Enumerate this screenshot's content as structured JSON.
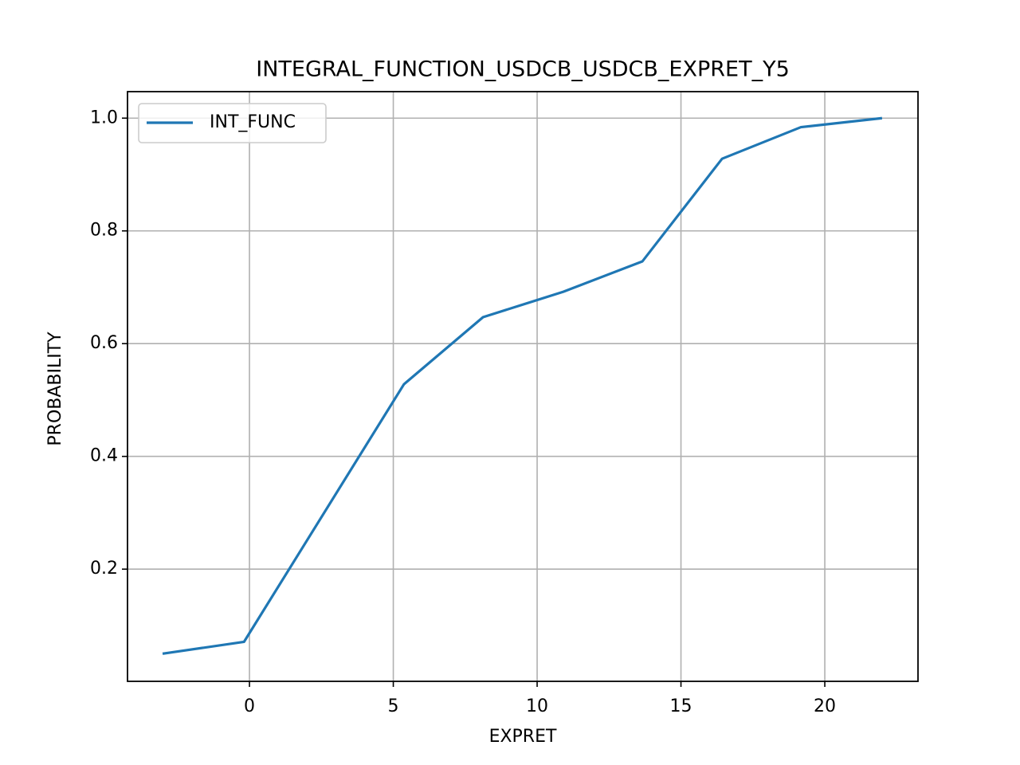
{
  "chart_data": {
    "type": "line",
    "title": "INTEGRAL_FUNCTION_USDCB_USDCB_EXPRET_Y5",
    "x_label": "EXPRET",
    "y_label": "PROBABILITY",
    "x": [
      -3.02,
      -0.19,
      5.37,
      8.12,
      10.91,
      13.66,
      16.43,
      19.17,
      21.99
    ],
    "series": [
      {
        "name": "INT_FUNC",
        "color": "#1f77b4",
        "values": [
          0.05,
          0.071,
          0.528,
          0.647,
          0.692,
          0.746,
          0.928,
          0.984,
          1.0
        ]
      }
    ],
    "xlim": [
      -4.24,
      23.24
    ],
    "ylim": [
      0.001,
      1.047
    ],
    "xticks": [
      0,
      5,
      10,
      15,
      20
    ],
    "yticks": [
      0.2,
      0.4,
      0.6,
      0.8,
      {
        "value": 1,
        "label": "1.0"
      }
    ],
    "grid": true,
    "legend": "upper left"
  }
}
